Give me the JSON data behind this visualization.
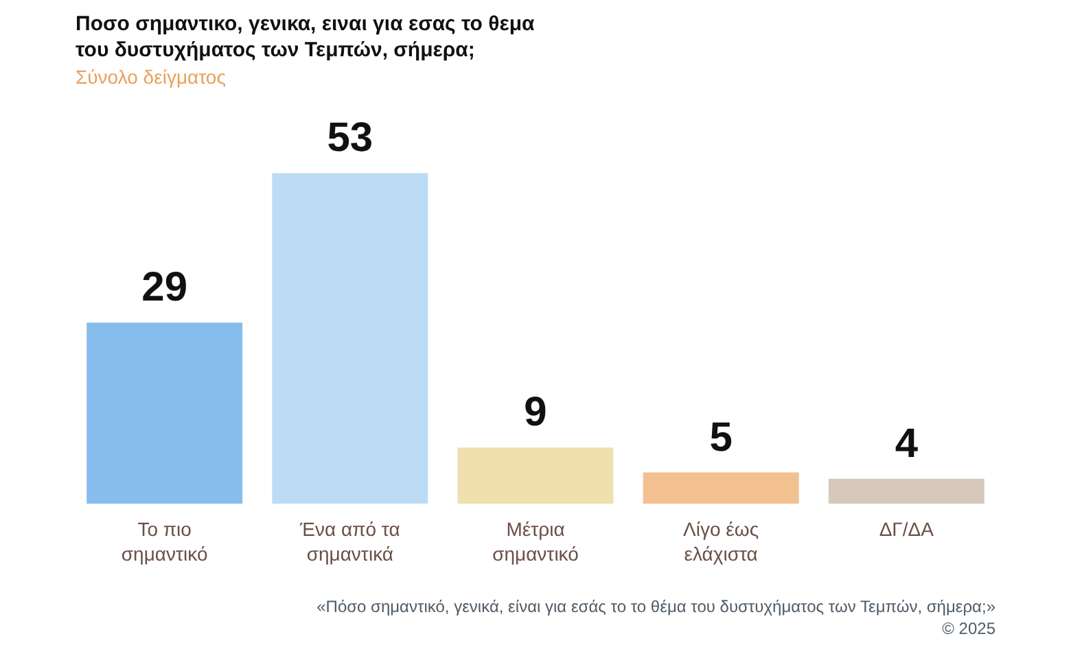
{
  "chart_data": {
    "type": "bar",
    "title": "Ποσο σημαντικο, γενικα, ειναι για εσας το θεμα του δυστυχήματος των Τεμπών, σήμερα;",
    "subtitle": "Σύνολο δείγματος",
    "categories": [
      "Το πιο σημαντικό",
      "Ένα από τα σημαντικά",
      "Μέτρια σημαντικό",
      "Λίγο έως ελάχιστα",
      "ΔΓ/ΔΑ"
    ],
    "values": [
      29,
      53,
      9,
      5,
      4
    ],
    "colors": [
      "#86bdec",
      "#bcdcf6",
      "#efe0ae",
      "#f3c08f",
      "#d6c9bb"
    ],
    "data_labels": true,
    "tick_labels": "x",
    "annotations": [
      "«Πόσο σημαντικό, γενικά, είναι για εσάς το το θέμα του δυστυχήματος των Τεμπών, σήμερα;»",
      "© 2025"
    ]
  }
}
